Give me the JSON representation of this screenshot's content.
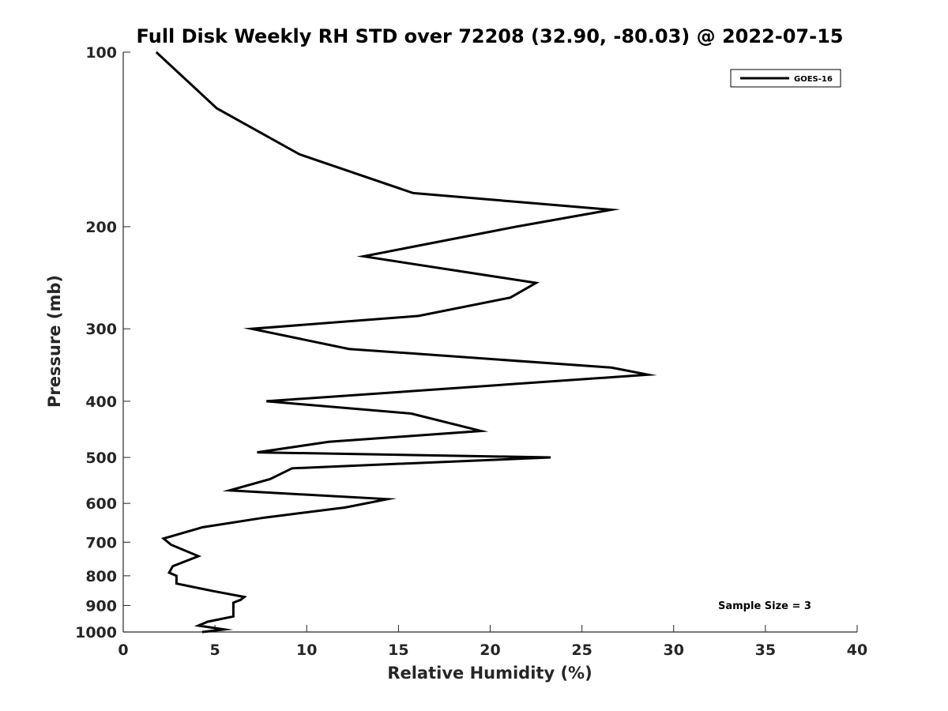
{
  "chart_data": {
    "type": "line",
    "title": "Full Disk Weekly RH STD over 72208 (32.90, -80.03) @ 2022-07-15",
    "xlabel": "Relative Humidity (%)",
    "ylabel": "Pressure (mb)",
    "xlim": [
      0,
      40
    ],
    "ylim": [
      1000,
      100
    ],
    "y_scale": "log",
    "grid": false,
    "x_ticks": [
      "0",
      "5",
      "10",
      "15",
      "20",
      "25",
      "30",
      "35",
      "40"
    ],
    "y_ticks": [
      "100",
      "200",
      "300",
      "400",
      "500",
      "600",
      "700",
      "800",
      "900",
      "1000"
    ],
    "legend": {
      "position": "top-right",
      "entries": [
        "GOES-16"
      ]
    },
    "annotations": [
      "Sample Size = 3"
    ],
    "series": [
      {
        "name": "GOES-16",
        "color": "#000000",
        "x": [
          1.8,
          5.1,
          9.6,
          15.8,
          26.6,
          21.4,
          13.1,
          22.5,
          21.1,
          16.1,
          7.0,
          12.3,
          26.6,
          28.6,
          7.8,
          15.7,
          19.5,
          11.2,
          7.3,
          23.3,
          9.2,
          8.0,
          5.8,
          14.4,
          12.1,
          7.7,
          4.3,
          2.2,
          2.6,
          4.1,
          2.7,
          2.5,
          2.9,
          2.9,
          4.9,
          6.6,
          6.4,
          6.0,
          6.0,
          6.0,
          4.6,
          4.1,
          5.5,
          4.3
        ],
        "y": [
          100,
          125,
          150,
          175,
          187,
          200,
          225,
          250,
          265,
          285,
          300,
          325,
          350,
          360,
          400,
          420,
          450,
          470,
          490,
          500,
          522,
          545,
          570,
          590,
          610,
          635,
          660,
          690,
          707,
          740,
          770,
          790,
          800,
          825,
          850,
          870,
          880,
          890,
          910,
          940,
          960,
          975,
          990,
          1000
        ]
      }
    ]
  }
}
